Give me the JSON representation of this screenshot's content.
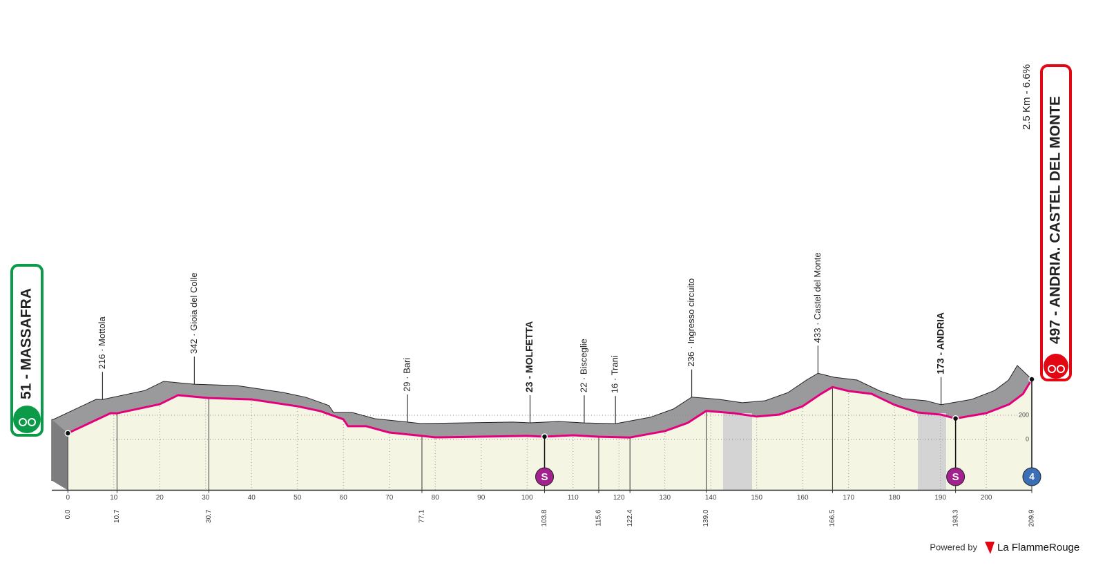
{
  "chart_data": {
    "type": "area",
    "x": [
      0,
      9.3,
      10.7,
      20,
      24,
      30.7,
      40,
      50,
      55,
      60,
      61,
      65,
      70,
      77.1,
      80,
      90,
      100,
      103.8,
      110,
      115.6,
      122.4,
      130,
      135,
      139,
      145,
      150,
      155,
      160,
      164,
      166.5,
      170,
      175,
      180,
      185,
      190,
      193.3,
      200,
      205,
      208,
      209.9
    ],
    "values": [
      51,
      217,
      216,
      291,
      366,
      342,
      331,
      274,
      234,
      166,
      109,
      109,
      57,
      29,
      17,
      23,
      29,
      23,
      34,
      22,
      16,
      69,
      137,
      236,
      217,
      189,
      206,
      274,
      377,
      433,
      400,
      377,
      286,
      223,
      206,
      173,
      217,
      291,
      377,
      497
    ],
    "color": "#e4007c",
    "xlim": [
      -3.5,
      209.9
    ],
    "ylim": [
      -420,
      3000
    ],
    "xticks": [
      0,
      10,
      20,
      30,
      40,
      50,
      60,
      70,
      80,
      90,
      100,
      110,
      120,
      130,
      140,
      150,
      160,
      170,
      180,
      190,
      200
    ],
    "yticks": [
      0,
      200
    ],
    "distance_labels": [
      {
        "value": 0,
        "label": "0.0"
      },
      {
        "value": 10.7,
        "label": "10.7"
      },
      {
        "value": 30.7,
        "label": "30.7"
      },
      {
        "value": 77.1,
        "label": "77.1"
      },
      {
        "value": 103.8,
        "label": "103.8"
      },
      {
        "value": 115.6,
        "label": "115.6"
      },
      {
        "value": 122.4,
        "label": "122.4"
      },
      {
        "value": 139,
        "label": "139.0"
      },
      {
        "value": 166.5,
        "label": "166.5"
      },
      {
        "value": 193.3,
        "label": "193.3"
      },
      {
        "value": 209.9,
        "label": "209.9"
      }
    ],
    "waypoints": [
      {
        "km": 10.7,
        "elevation": 216,
        "name": "216 · Mottola"
      },
      {
        "km": 30.7,
        "elevation": 342,
        "name": "342 · Gioia del Colle"
      },
      {
        "km": 77.1,
        "elevation": 29,
        "name": "29 · Bari"
      },
      {
        "km": 103.8,
        "elevation": 23,
        "name": "23 - MOLFETTA",
        "bold": true
      },
      {
        "km": 115.6,
        "elevation": 22,
        "name": "22 · Bisceglie"
      },
      {
        "km": 122.4,
        "elevation": 16,
        "name": "16 · Trani"
      },
      {
        "km": 139,
        "elevation": 236,
        "name": "236 · Ingresso circuito"
      },
      {
        "km": 166.5,
        "elevation": 433,
        "name": "433 · Castel del Monte"
      },
      {
        "km": 193.3,
        "elevation": 173,
        "name": "173 - ANDRIA",
        "bold": true
      }
    ],
    "sprints": [
      {
        "km": 103.8,
        "label": "S"
      },
      {
        "km": 193.3,
        "label": "S"
      }
    ],
    "finish_badge": {
      "km": 209.9,
      "label": "4"
    },
    "start": "51 - MASSAFRA",
    "finish": "497 - ANDRIA. CASTEL DEL MONTE",
    "final_climb": "2.5 Km - 6.6%",
    "footer": {
      "powered": "Powered by",
      "brand": "La FlammeRouge"
    }
  }
}
